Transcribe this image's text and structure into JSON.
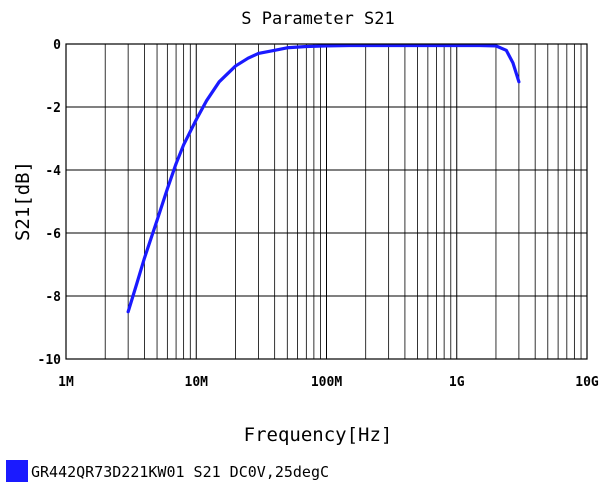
{
  "chart_data": {
    "type": "line",
    "title": "S Parameter S21",
    "xlabel": "Frequency[Hz]",
    "ylabel": "S21[dB]",
    "x_scale": "log",
    "xlim": [
      1000000,
      10000000000
    ],
    "ylim": [
      -10,
      0
    ],
    "x_ticks": [
      {
        "value": 1000000,
        "label": "1M"
      },
      {
        "value": 10000000,
        "label": "10M"
      },
      {
        "value": 100000000,
        "label": "100M"
      },
      {
        "value": 1000000000,
        "label": "1G"
      },
      {
        "value": 10000000000,
        "label": "10G"
      }
    ],
    "y_ticks": [
      {
        "value": 0,
        "label": "0"
      },
      {
        "value": -2,
        "label": "-2"
      },
      {
        "value": -4,
        "label": "-4"
      },
      {
        "value": -6,
        "label": "-6"
      },
      {
        "value": -8,
        "label": "-8"
      },
      {
        "value": -10,
        "label": "-10"
      }
    ],
    "grid": true,
    "legend_position": "bottom-left",
    "series": [
      {
        "name": "GR442QR73D221KW01  S21  DC0V,25degC",
        "color": "#1a1aff",
        "x": [
          3000000,
          3500000,
          4000000,
          5000000,
          6000000,
          7000000,
          8000000,
          10000000,
          12000000,
          15000000,
          20000000,
          25000000,
          30000000,
          40000000,
          50000000,
          70000000,
          100000000,
          150000000,
          200000000,
          300000000,
          500000000,
          700000000,
          1000000000,
          1500000000,
          2000000000,
          2400000000,
          2700000000,
          3000000000
        ],
        "y": [
          -8.5,
          -7.6,
          -6.8,
          -5.6,
          -4.6,
          -3.8,
          -3.2,
          -2.4,
          -1.8,
          -1.2,
          -0.7,
          -0.45,
          -0.3,
          -0.2,
          -0.12,
          -0.08,
          -0.06,
          -0.05,
          -0.05,
          -0.05,
          -0.05,
          -0.05,
          -0.05,
          -0.05,
          -0.06,
          -0.2,
          -0.6,
          -1.2
        ]
      }
    ]
  }
}
